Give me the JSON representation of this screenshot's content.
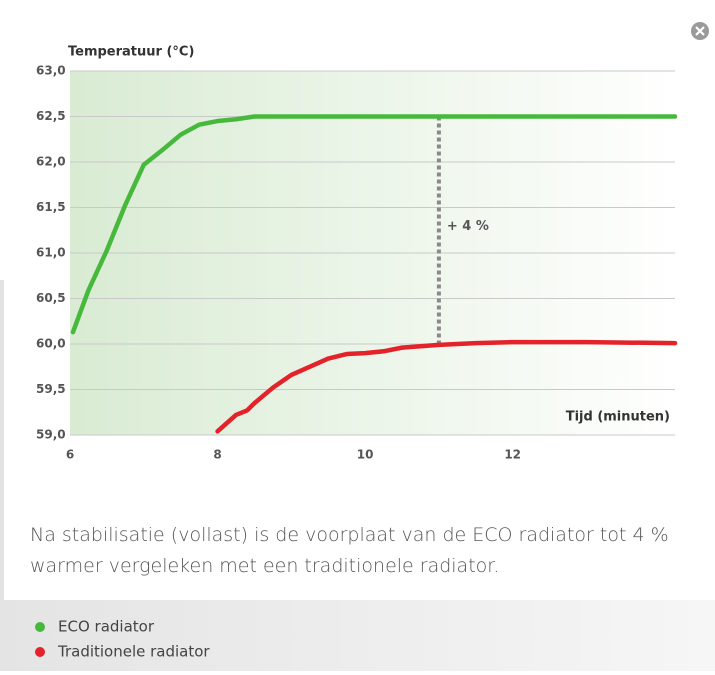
{
  "chart_data": {
    "type": "line",
    "y_label": "Temperatuur  (°C)",
    "x_label": "Tijd (minuten)",
    "xlim": [
      6,
      14.2
    ],
    "xticks": [
      6,
      8,
      10,
      12
    ],
    "ylim": [
      59,
      63
    ],
    "yticks": [
      {
        "value": 59,
        "label": "59,0"
      },
      {
        "value": 59.5,
        "label": "59,5"
      },
      {
        "value": 60,
        "label": "60,0"
      },
      {
        "value": 60.5,
        "label": "60,5"
      },
      {
        "value": 61,
        "label": "61,0"
      },
      {
        "value": 61.5,
        "label": "61,5"
      },
      {
        "value": 62,
        "label": "62,0"
      },
      {
        "value": 62.5,
        "label": "62,5"
      },
      {
        "value": 63,
        "label": "63,0"
      }
    ],
    "grid": true,
    "series": [
      {
        "name": "ECO radiator",
        "color": "#46b93c",
        "x": [
          6.04,
          6.25,
          6.5,
          6.75,
          7,
          7.25,
          7.5,
          7.75,
          8,
          8.25,
          8.5,
          9,
          10,
          11,
          12,
          13,
          14.2
        ],
        "values": [
          60.13,
          60.59,
          61.03,
          61.53,
          61.97,
          62.13,
          62.3,
          62.41,
          62.45,
          62.47,
          62.5,
          62.5,
          62.5,
          62.5,
          62.5,
          62.5,
          62.5
        ]
      },
      {
        "name": "Traditionele radiator",
        "color": "#e3222a",
        "x": [
          8,
          8.25,
          8.4,
          8.5,
          8.75,
          9,
          9.5,
          9.75,
          10,
          10.25,
          10.5,
          11,
          11.5,
          12,
          13,
          14.2
        ],
        "values": [
          59.04,
          59.22,
          59.27,
          59.35,
          59.52,
          59.66,
          59.84,
          59.89,
          59.9,
          59.92,
          59.96,
          59.99,
          60.01,
          60.02,
          60.02,
          60.01
        ]
      }
    ],
    "annotation": {
      "text": "+ 4 %",
      "x": 11,
      "y_from": 62.5,
      "y_to": 60
    },
    "caption": "Na stabilisatie (vollast) is de voorplaat van de ECO radiator tot 4 % warmer vergeleken met een traditionele radiator."
  }
}
